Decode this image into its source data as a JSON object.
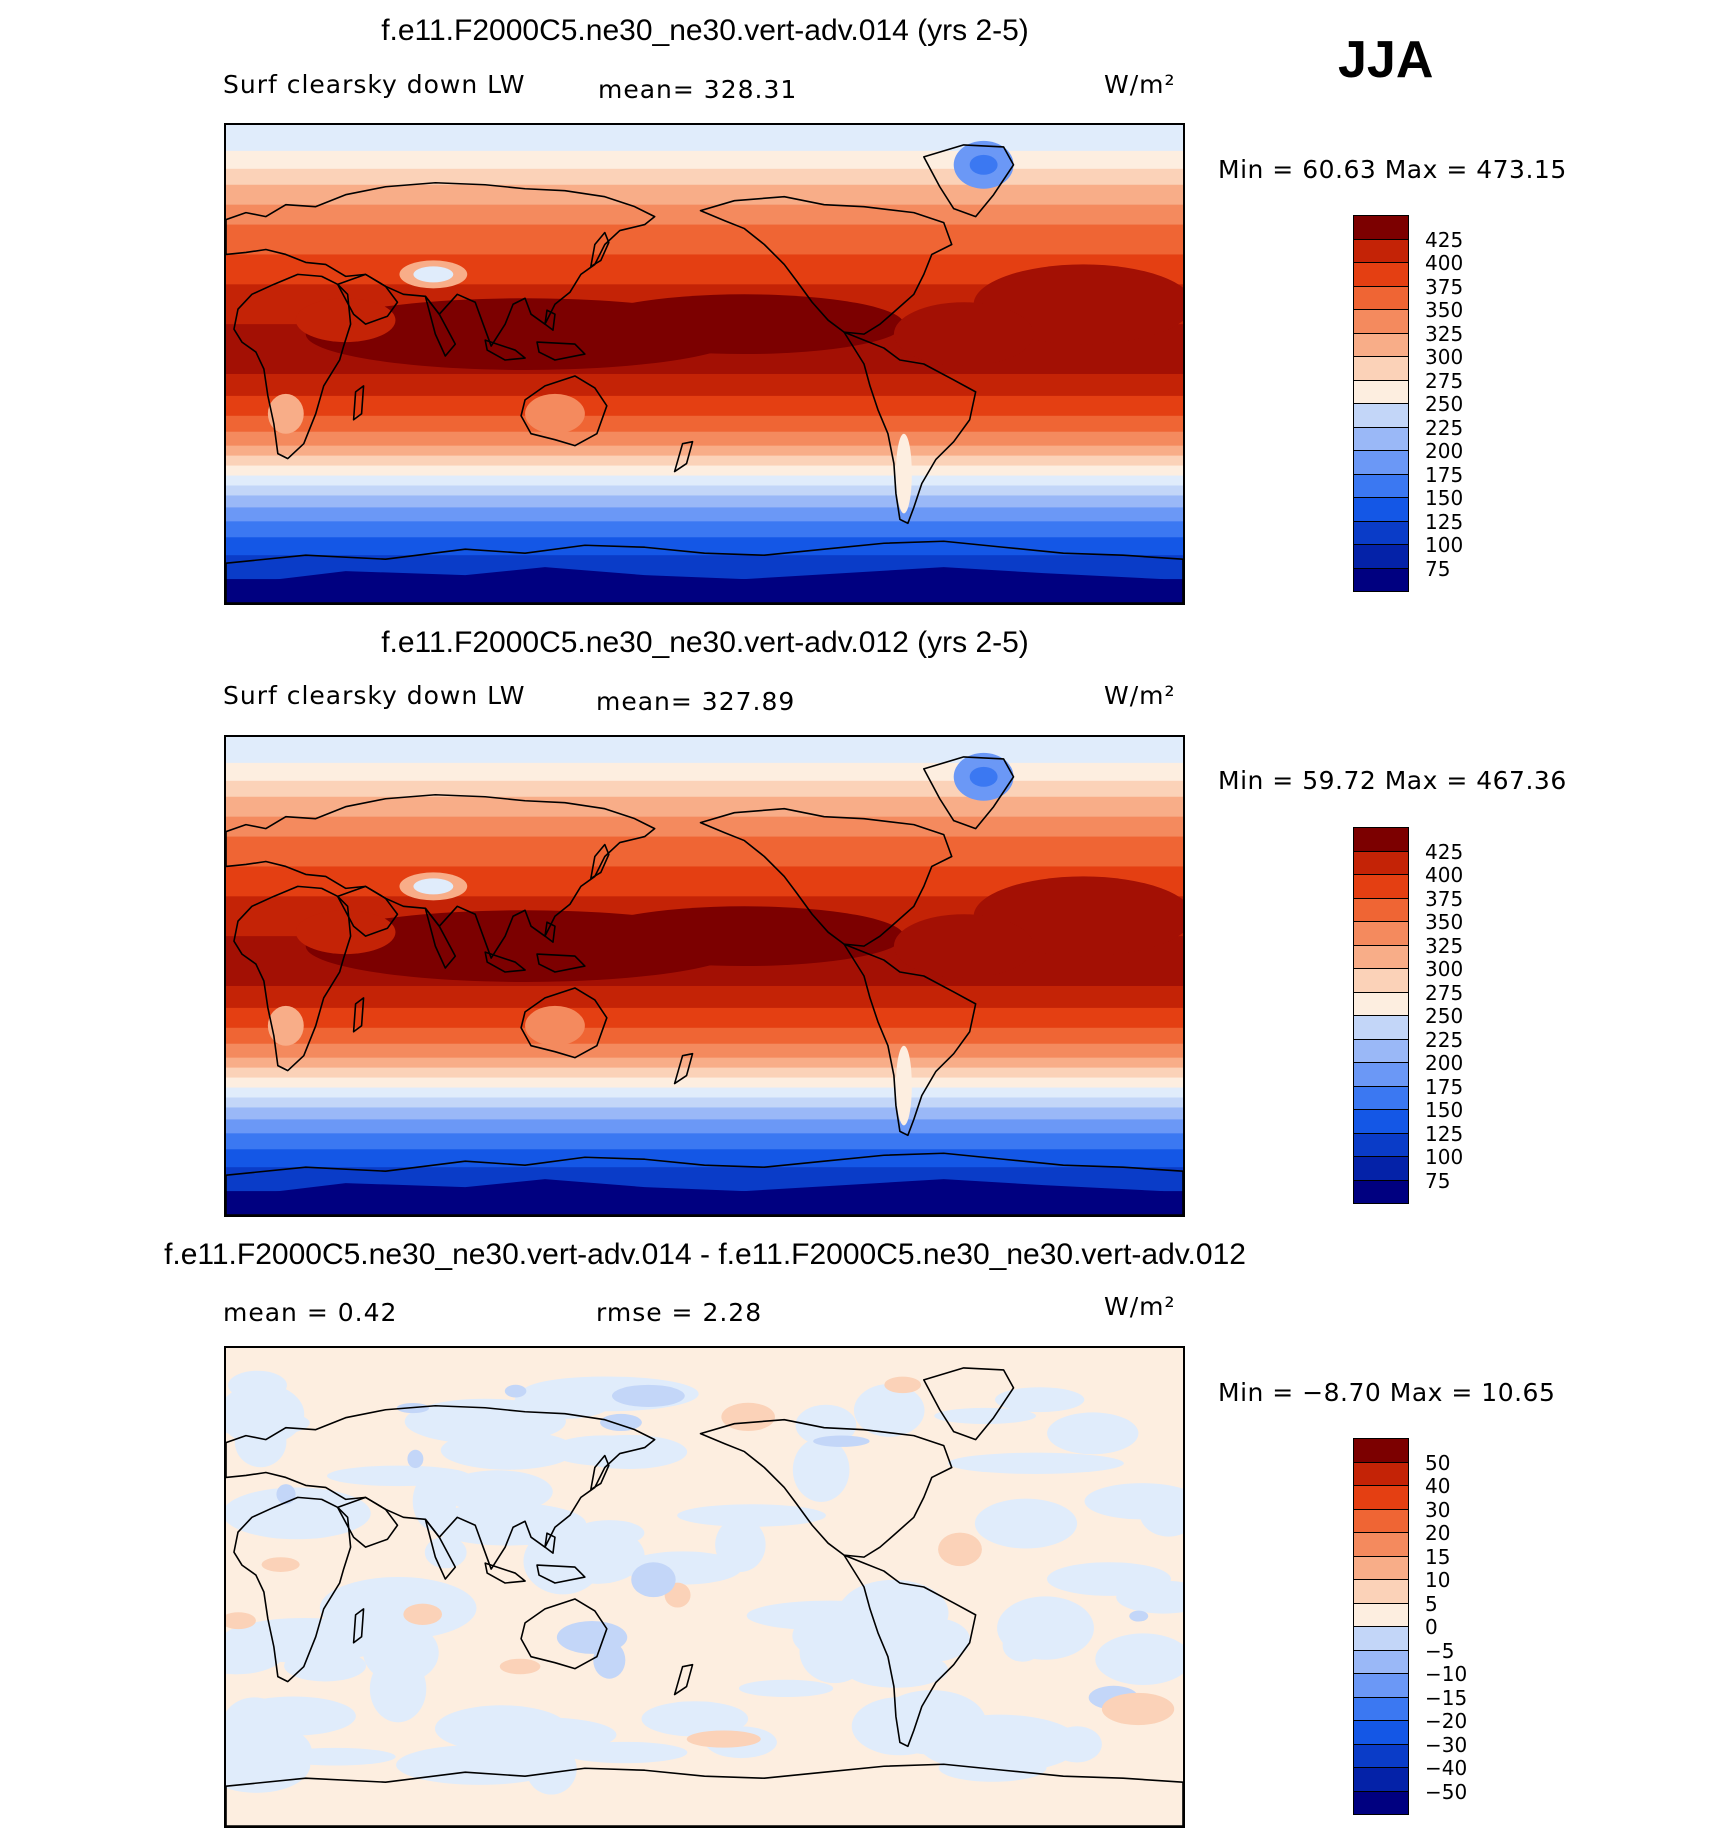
{
  "season": "JJA",
  "palettes": {
    "abs": [
      "#000080",
      "#0422a8",
      "#0a3cc8",
      "#1457e6",
      "#3b78f2",
      "#6b98f6",
      "#9ab8f7",
      "#c3d6f8",
      "#e0ecfb",
      "#fdeee0",
      "#fbd2b8",
      "#f8ad88",
      "#f48a5e",
      "#ef6534",
      "#e43f12",
      "#c42306",
      "#a31004",
      "#7c0000"
    ],
    "diff": [
      "#000080",
      "#0422a8",
      "#0a3cc8",
      "#1457e6",
      "#3b78f2",
      "#6b98f6",
      "#9ab8f7",
      "#c3d6f8",
      "#e0ecfb",
      "#fdeee0",
      "#fbd2b8",
      "#f8ad88",
      "#f48a5e",
      "#ef6534",
      "#e43f12",
      "#c42306",
      "#a31004",
      "#7c0000"
    ]
  },
  "panels": [
    {
      "title": "f.e11.F2000C5.ne30_ne30.vert-adv.014 (yrs 2-5)",
      "left_label": "Surf clearsky down LW",
      "center_label": "mean= 328.31",
      "units": "W/m²",
      "minmax": "Min =   60.63 Max =  473.15",
      "map_type": "abs"
    },
    {
      "title": "f.e11.F2000C5.ne30_ne30.vert-adv.012 (yrs 2-5)",
      "left_label": "Surf clearsky down LW",
      "center_label": "mean= 327.89",
      "units": "W/m²",
      "minmax": "Min =   59.72 Max =  467.36",
      "map_type": "abs"
    },
    {
      "title": "f.e11.F2000C5.ne30_ne30.vert-adv.014 - f.e11.F2000C5.ne30_ne30.vert-adv.012",
      "left_label": "mean =    0.42",
      "center_label": "rmse =    2.28",
      "units": "W/m²",
      "minmax": "Min =  −8.70 Max =   10.65",
      "map_type": "diff"
    }
  ],
  "chart_data": [
    {
      "type": "heatmap",
      "title": "f.e11.F2000C5.ne30_ne30.vert-adv.014 (yrs 2-5)",
      "variable": "Surf clearsky down LW",
      "units": "W/m²",
      "mean": 328.31,
      "min": 60.63,
      "max": 473.15,
      "colorbar_levels": [
        "425",
        "400",
        "375",
        "350",
        "325",
        "300",
        "275",
        "250",
        "225",
        "200",
        "175",
        "150",
        "125",
        "100",
        "75"
      ]
    },
    {
      "type": "heatmap",
      "title": "f.e11.F2000C5.ne30_ne30.vert-adv.012 (yrs 2-5)",
      "variable": "Surf clearsky down LW",
      "units": "W/m²",
      "mean": 327.89,
      "min": 59.72,
      "max": 467.36,
      "colorbar_levels": [
        "425",
        "400",
        "375",
        "350",
        "325",
        "300",
        "275",
        "250",
        "225",
        "200",
        "175",
        "150",
        "125",
        "100",
        "75"
      ]
    },
    {
      "type": "heatmap",
      "title": "f.e11.F2000C5.ne30_ne30.vert-adv.014 - f.e11.F2000C5.ne30_ne30.vert-adv.012",
      "units": "W/m²",
      "mean": 0.42,
      "rmse": 2.28,
      "min": -8.7,
      "max": 10.65,
      "colorbar_levels": [
        "50",
        "40",
        "30",
        "20",
        "15",
        "10",
        "5",
        "0",
        "−5",
        "−10",
        "−15",
        "−20",
        "−30",
        "−40",
        "−50"
      ]
    }
  ]
}
